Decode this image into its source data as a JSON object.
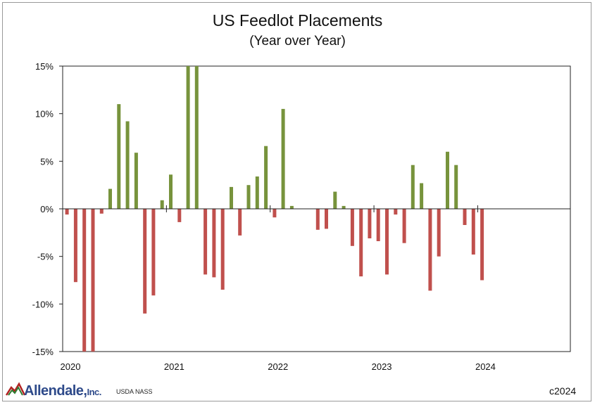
{
  "chart_data": {
    "type": "bar",
    "title": "US Feedlot Placements",
    "subtitle": "(Year over Year)",
    "xlabel": "",
    "ylabel": "",
    "ylim": [
      -15,
      15
    ],
    "yticks": [
      15,
      10,
      5,
      0,
      -5,
      -10,
      -15
    ],
    "ytick_labels": [
      "15%",
      "10%",
      "5%",
      "0%",
      "-5%",
      "-10%",
      "-15%"
    ],
    "x_year_labels": [
      "2020",
      "2021",
      "2022",
      "2023",
      "2024"
    ],
    "month_index_start": 0,
    "months_total": 72,
    "positive_color": "#77933c",
    "negative_color": "#c0504d",
    "values": [
      -0.6,
      -7.7,
      -15,
      -15,
      -0.5,
      2.1,
      11.0,
      9.2,
      5.9,
      -11.0,
      -9.1,
      0.9,
      3.6,
      -1.4,
      15,
      15,
      -6.9,
      -7.2,
      -8.5,
      2.3,
      -2.8,
      2.5,
      3.4,
      6.6,
      -0.9,
      10.5,
      0.3,
      0,
      0,
      -2.2,
      -2.1,
      1.8,
      0.3,
      -3.9,
      -7.1,
      -3.1,
      -3.4,
      -6.9,
      -0.6,
      -3.6,
      4.6,
      2.7,
      -8.6,
      -5.0,
      6.0,
      4.6,
      -1.7,
      -4.8,
      -7.5
    ]
  },
  "branding": {
    "logo_name": "Allendale,",
    "logo_suffix": "Inc.",
    "source": "USDA NASS",
    "copyright": "c2024"
  }
}
